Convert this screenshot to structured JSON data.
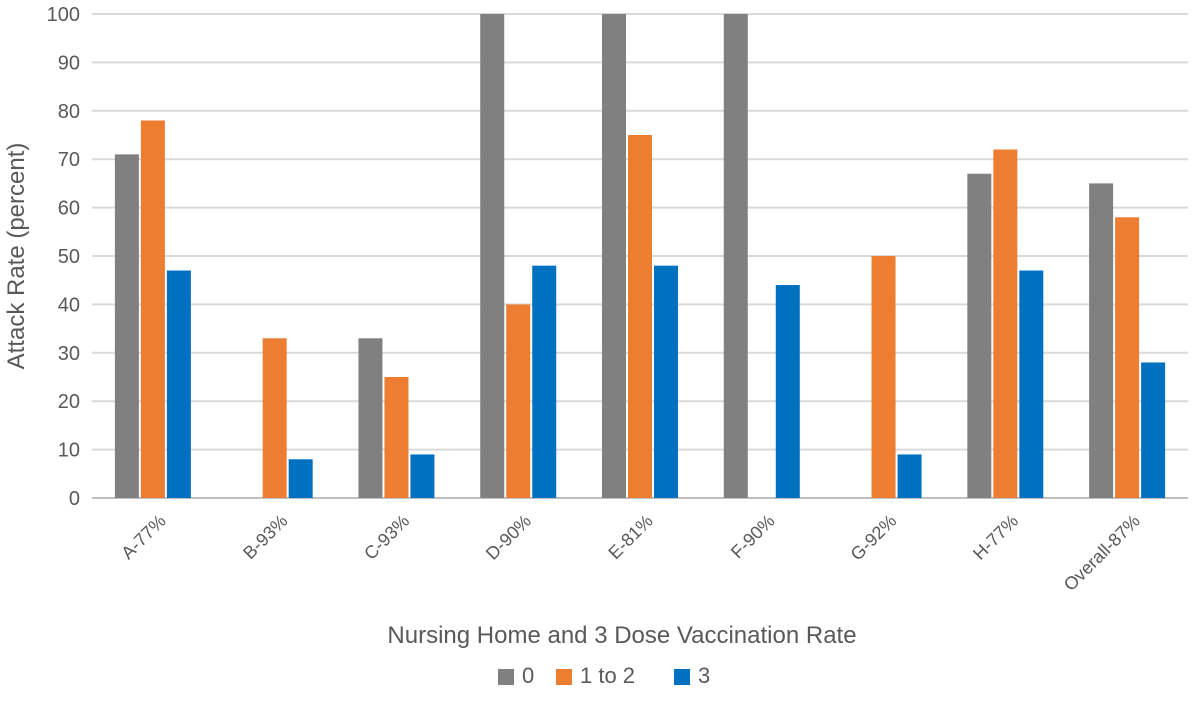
{
  "chart_data": {
    "type": "bar",
    "title": "",
    "xlabel": "Nursing Home and 3 Dose Vaccination Rate",
    "ylabel": "Attack Rate (percent)",
    "ylim": [
      0,
      100
    ],
    "yticks": [
      0,
      10,
      20,
      30,
      40,
      50,
      60,
      70,
      80,
      90,
      100
    ],
    "grid": true,
    "legend_position": "bottom",
    "categories": [
      "A-77%",
      "B-93%",
      "C-93%",
      "D-90%",
      "E-81%",
      "F-90%",
      "G-92%",
      "H-77%",
      "Overall-87%"
    ],
    "series": [
      {
        "name": "0",
        "color": "#808080",
        "values": [
          71,
          0,
          33,
          100,
          100,
          100,
          0,
          67,
          65
        ]
      },
      {
        "name": "1 to 2",
        "color": "#ed7d31",
        "values": [
          78,
          33,
          25,
          40,
          75,
          0,
          50,
          72,
          58
        ]
      },
      {
        "name": "3",
        "color": "#0070c0",
        "values": [
          47,
          8,
          9,
          48,
          48,
          44,
          9,
          47,
          28
        ]
      }
    ]
  }
}
